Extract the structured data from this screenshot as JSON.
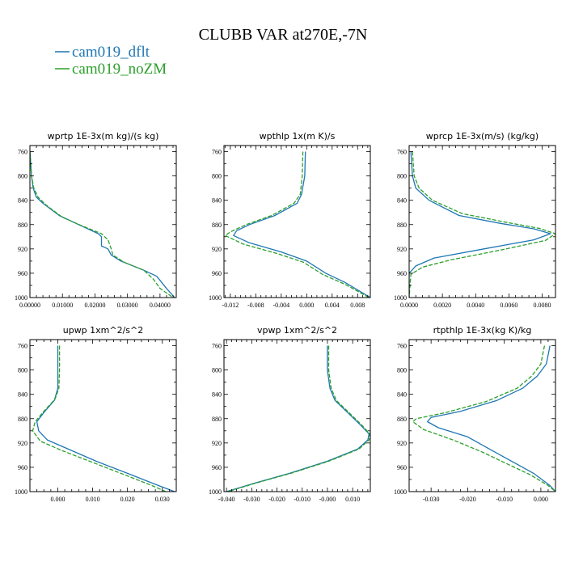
{
  "title": "CLUBB VAR at270E,-7N",
  "legend": [
    {
      "name": "cam019_dflt",
      "color": "#1f77b4"
    },
    {
      "name": "cam019_noZM",
      "color": "#2ca02c"
    }
  ],
  "chart_data": [
    {
      "type": "line",
      "title": "wprtp   1E-3x(m kg)/(s kg)",
      "xlim": [
        0,
        0.045
      ],
      "xticks": [
        "0.00000",
        "0.01000",
        "0.02000",
        "0.03000",
        "0.04000"
      ],
      "xtick_values": [
        0,
        0.01,
        0.02,
        0.03,
        0.04
      ],
      "ylim": [
        750,
        1000
      ],
      "yticks": [
        760,
        800,
        840,
        880,
        920,
        960,
        1000
      ],
      "series": [
        {
          "name": "cam019_dflt",
          "color": "#1f77b4",
          "dashed": false,
          "points": [
            [
              0.0,
              760
            ],
            [
              0.0005,
              800
            ],
            [
              0.001,
              820
            ],
            [
              0.002,
              835
            ],
            [
              0.004,
              845
            ],
            [
              0.009,
              865
            ],
            [
              0.015,
              880
            ],
            [
              0.021,
              895
            ],
            [
              0.022,
              900
            ],
            [
              0.022,
              915
            ],
            [
              0.024,
              920
            ],
            [
              0.025,
              930
            ],
            [
              0.028,
              940
            ],
            [
              0.035,
              955
            ],
            [
              0.039,
              965
            ],
            [
              0.042,
              985
            ],
            [
              0.0445,
              1000
            ]
          ]
        },
        {
          "name": "cam019_noZM",
          "color": "#2ca02c",
          "dashed": true,
          "points": [
            [
              0.0,
              760
            ],
            [
              0.0005,
              800
            ],
            [
              0.0012,
              820
            ],
            [
              0.0025,
              835
            ],
            [
              0.005,
              848
            ],
            [
              0.01,
              868
            ],
            [
              0.016,
              882
            ],
            [
              0.022,
              895
            ],
            [
              0.024,
              905
            ],
            [
              0.025,
              920
            ],
            [
              0.0255,
              930
            ],
            [
              0.029,
              942
            ],
            [
              0.035,
              955
            ],
            [
              0.038,
              970
            ],
            [
              0.04,
              985
            ],
            [
              0.044,
              1000
            ]
          ]
        }
      ]
    },
    {
      "type": "line",
      "title": "wpthlp   1x(m K)/s",
      "xlim": [
        -0.013,
        0.01
      ],
      "xticks": [
        "-0.012",
        "-0.008",
        "-0.004",
        "0.000",
        "0.004",
        "0.008"
      ],
      "xtick_values": [
        -0.012,
        -0.008,
        -0.004,
        0,
        0.004,
        0.008
      ],
      "ylim": [
        750,
        1000
      ],
      "yticks": [
        760,
        800,
        840,
        880,
        920,
        960,
        1000
      ],
      "series": [
        {
          "name": "cam019_dflt",
          "color": "#1f77b4",
          "dashed": false,
          "points": [
            [
              -0.0002,
              760
            ],
            [
              -0.0003,
              800
            ],
            [
              -0.0008,
              830
            ],
            [
              -0.0015,
              845
            ],
            [
              -0.005,
              865
            ],
            [
              -0.009,
              880
            ],
            [
              -0.011,
              890
            ],
            [
              -0.0115,
              898
            ],
            [
              -0.009,
              910
            ],
            [
              -0.004,
              925
            ],
            [
              0.0,
              940
            ],
            [
              0.003,
              960
            ],
            [
              0.006,
              975
            ],
            [
              0.01,
              1000
            ]
          ]
        },
        {
          "name": "cam019_noZM",
          "color": "#2ca02c",
          "dashed": true,
          "points": [
            [
              -0.0006,
              760
            ],
            [
              -0.0007,
              800
            ],
            [
              -0.001,
              830
            ],
            [
              -0.002,
              845
            ],
            [
              -0.0055,
              865
            ],
            [
              -0.0095,
              880
            ],
            [
              -0.012,
              892
            ],
            [
              -0.0128,
              898
            ],
            [
              -0.01,
              912
            ],
            [
              -0.0045,
              928
            ],
            [
              -0.0005,
              942
            ],
            [
              0.0025,
              962
            ],
            [
              0.006,
              978
            ],
            [
              0.0098,
              1000
            ]
          ]
        }
      ]
    },
    {
      "type": "line",
      "title": "wprcp   1E-3x(m/s) (kg/kg)",
      "xlim": [
        0,
        0.0088
      ],
      "xticks": [
        "0.0000",
        "0.0020",
        "0.0040",
        "0.0060",
        "0.0080"
      ],
      "xtick_values": [
        0,
        0.002,
        0.004,
        0.006,
        0.008
      ],
      "ylim": [
        750,
        1000
      ],
      "yticks": [
        760,
        800,
        840,
        880,
        920,
        960,
        1000
      ],
      "series": [
        {
          "name": "cam019_dflt",
          "color": "#1f77b4",
          "dashed": false,
          "points": [
            [
              0.0001,
              760
            ],
            [
              0.0002,
              800
            ],
            [
              0.0004,
              820
            ],
            [
              0.0012,
              840
            ],
            [
              0.003,
              865
            ],
            [
              0.0055,
              878
            ],
            [
              0.0075,
              887
            ],
            [
              0.0085,
              895
            ],
            [
              0.0075,
              905
            ],
            [
              0.0045,
              920
            ],
            [
              0.0015,
              935
            ],
            [
              0.0004,
              948
            ],
            [
              0.0,
              960
            ],
            [
              0.0,
              1000
            ]
          ]
        },
        {
          "name": "cam019_noZM",
          "color": "#2ca02c",
          "dashed": true,
          "points": [
            [
              0.0002,
              760
            ],
            [
              0.0003,
              800
            ],
            [
              0.0006,
              820
            ],
            [
              0.0014,
              840
            ],
            [
              0.0032,
              862
            ],
            [
              0.0058,
              876
            ],
            [
              0.0078,
              886
            ],
            [
              0.0088,
              895
            ],
            [
              0.0082,
              906
            ],
            [
              0.0055,
              922
            ],
            [
              0.0025,
              938
            ],
            [
              0.0008,
              950
            ],
            [
              0.0001,
              962
            ],
            [
              0.0,
              1000
            ]
          ]
        }
      ]
    },
    {
      "type": "line",
      "title": "upwp   1xm^2/s^2",
      "xlim": [
        -0.008,
        0.034
      ],
      "xticks": [
        "0.000",
        "0.010",
        "0.020",
        "0.030"
      ],
      "xtick_values": [
        0,
        0.01,
        0.02,
        0.03
      ],
      "ylim": [
        750,
        1000
      ],
      "yticks": [
        760,
        800,
        840,
        880,
        920,
        960,
        1000
      ],
      "series": [
        {
          "name": "cam019_dflt",
          "color": "#1f77b4",
          "dashed": false,
          "points": [
            [
              0.0,
              760
            ],
            [
              0.0,
              800
            ],
            [
              0.0,
              830
            ],
            [
              -0.001,
              850
            ],
            [
              -0.004,
              870
            ],
            [
              -0.006,
              885
            ],
            [
              -0.0055,
              900
            ],
            [
              -0.003,
              915
            ],
            [
              0.003,
              930
            ],
            [
              0.011,
              950
            ],
            [
              0.02,
              970
            ],
            [
              0.028,
              988
            ],
            [
              0.0335,
              1000
            ]
          ]
        },
        {
          "name": "cam019_noZM",
          "color": "#2ca02c",
          "dashed": true,
          "points": [
            [
              0.0005,
              760
            ],
            [
              0.0005,
              800
            ],
            [
              0.0003,
              830
            ],
            [
              -0.0008,
              848
            ],
            [
              -0.004,
              868
            ],
            [
              -0.0065,
              885
            ],
            [
              -0.0072,
              900
            ],
            [
              -0.005,
              917
            ],
            [
              0.001,
              932
            ],
            [
              0.01,
              952
            ],
            [
              0.019,
              972
            ],
            [
              0.027,
              990
            ],
            [
              0.031,
              1000
            ]
          ]
        }
      ]
    },
    {
      "type": "line",
      "title": "vpwp   1xm^2/s^2",
      "xlim": [
        -0.041,
        0.017
      ],
      "xticks": [
        "-0.040",
        "-0.030",
        "-0.020",
        "-0.010",
        "-0.000",
        "0.010"
      ],
      "xtick_values": [
        -0.04,
        -0.03,
        -0.02,
        -0.01,
        0,
        0.01
      ],
      "ylim": [
        750,
        1000
      ],
      "yticks": [
        760,
        800,
        840,
        880,
        920,
        960,
        1000
      ],
      "series": [
        {
          "name": "cam019_dflt",
          "color": "#1f77b4",
          "dashed": false,
          "points": [
            [
              0.0,
              760
            ],
            [
              0.0,
              800
            ],
            [
              0.001,
              830
            ],
            [
              0.003,
              850
            ],
            [
              0.008,
              870
            ],
            [
              0.013,
              890
            ],
            [
              0.0165,
              905
            ],
            [
              0.016,
              915
            ],
            [
              0.012,
              930
            ],
            [
              0.0,
              950
            ],
            [
              -0.015,
              970
            ],
            [
              -0.028,
              985
            ],
            [
              -0.04,
              1000
            ]
          ]
        },
        {
          "name": "cam019_noZM",
          "color": "#2ca02c",
          "dashed": true,
          "points": [
            [
              0.0005,
              760
            ],
            [
              0.0005,
              800
            ],
            [
              0.0015,
              830
            ],
            [
              0.0035,
              850
            ],
            [
              0.0085,
              870
            ],
            [
              0.0135,
              890
            ],
            [
              0.0168,
              905
            ],
            [
              0.0165,
              915
            ],
            [
              0.0125,
              930
            ],
            [
              0.0005,
              950
            ],
            [
              -0.0145,
              970
            ],
            [
              -0.0275,
              985
            ],
            [
              -0.0395,
              1000
            ]
          ]
        }
      ]
    },
    {
      "type": "line",
      "title": "rtpthlp   1E-3x(kg K)/kg",
      "xlim": [
        -0.036,
        0.004
      ],
      "xticks": [
        "-0.030",
        "-0.020",
        "-0.010",
        "0.000"
      ],
      "xtick_values": [
        -0.03,
        -0.02,
        -0.01,
        0
      ],
      "ylim": [
        750,
        1000
      ],
      "yticks": [
        760,
        800,
        840,
        880,
        920,
        960,
        1000
      ],
      "series": [
        {
          "name": "cam019_dflt",
          "color": "#1f77b4",
          "dashed": false,
          "points": [
            [
              0.0025,
              760
            ],
            [
              0.0015,
              790
            ],
            [
              -0.001,
              810
            ],
            [
              -0.005,
              830
            ],
            [
              -0.012,
              850
            ],
            [
              -0.022,
              868
            ],
            [
              -0.03,
              878
            ],
            [
              -0.031,
              885
            ],
            [
              -0.028,
              895
            ],
            [
              -0.02,
              910
            ],
            [
              -0.014,
              930
            ],
            [
              -0.008,
              950
            ],
            [
              -0.002,
              970
            ],
            [
              0.0025,
              990
            ],
            [
              0.004,
              1000
            ]
          ]
        },
        {
          "name": "cam019_noZM",
          "color": "#2ca02c",
          "dashed": true,
          "points": [
            [
              0.001,
              760
            ],
            [
              0.0,
              790
            ],
            [
              -0.0025,
              810
            ],
            [
              -0.0065,
              830
            ],
            [
              -0.015,
              852
            ],
            [
              -0.026,
              870
            ],
            [
              -0.034,
              880
            ],
            [
              -0.035,
              885
            ],
            [
              -0.032,
              898
            ],
            [
              -0.024,
              915
            ],
            [
              -0.016,
              935
            ],
            [
              -0.009,
              955
            ],
            [
              -0.003,
              972
            ],
            [
              0.002,
              990
            ],
            [
              0.004,
              1000
            ]
          ]
        }
      ]
    }
  ]
}
